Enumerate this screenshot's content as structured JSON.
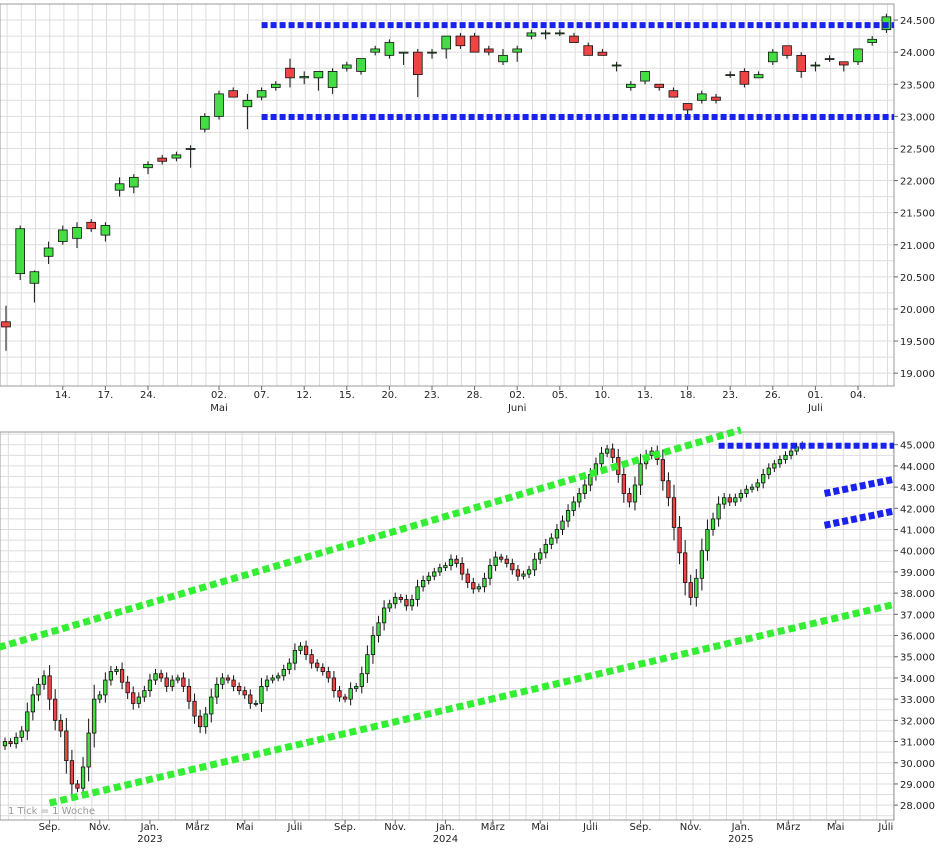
{
  "chart_data": [
    {
      "type": "candlestick",
      "panel": "daily",
      "y_axis": {
        "min": 18800,
        "max": 24750,
        "ticks": [
          "19.000",
          "19.500",
          "20.000",
          "20.500",
          "21.000",
          "21.500",
          "22.000",
          "22.500",
          "23.000",
          "23.500",
          "24.000",
          "24.500"
        ],
        "tick_values": [
          19000,
          19500,
          20000,
          20500,
          21000,
          21500,
          22000,
          22500,
          23000,
          23500,
          24000,
          24500
        ],
        "position": "right"
      },
      "x_axis": {
        "labels": [
          {
            "i": 4,
            "day": "14.",
            "month": ""
          },
          {
            "i": 7,
            "day": "17.",
            "month": ""
          },
          {
            "i": 10,
            "day": "24.",
            "month": ""
          },
          {
            "i": 15,
            "day": "02.",
            "month": "Mai"
          },
          {
            "i": 18,
            "day": "07.",
            "month": ""
          },
          {
            "i": 21,
            "day": "12.",
            "month": ""
          },
          {
            "i": 24,
            "day": "15.",
            "month": ""
          },
          {
            "i": 27,
            "day": "20.",
            "month": ""
          },
          {
            "i": 30,
            "day": "23.",
            "month": ""
          },
          {
            "i": 33,
            "day": "28.",
            "month": ""
          },
          {
            "i": 36,
            "day": "02.",
            "month": "Juni"
          },
          {
            "i": 39,
            "day": "05.",
            "month": ""
          },
          {
            "i": 42,
            "day": "10.",
            "month": ""
          },
          {
            "i": 45,
            "day": "13.",
            "month": ""
          },
          {
            "i": 48,
            "day": "18.",
            "month": ""
          },
          {
            "i": 51,
            "day": "23.",
            "month": ""
          },
          {
            "i": 54,
            "day": "26.",
            "month": ""
          },
          {
            "i": 57,
            "day": "01.",
            "month": "Juli"
          },
          {
            "i": 60,
            "day": "04.",
            "month": ""
          }
        ]
      },
      "candles": [
        [
          19800,
          20050,
          19350,
          19720
        ],
        [
          20550,
          21300,
          20450,
          21250
        ],
        [
          20400,
          20600,
          20100,
          20580
        ],
        [
          20820,
          21050,
          20700,
          20950
        ],
        [
          21050,
          21300,
          21000,
          21230
        ],
        [
          21100,
          21350,
          20950,
          21270
        ],
        [
          21350,
          21400,
          21200,
          21250
        ],
        [
          21150,
          21350,
          21050,
          21300
        ],
        [
          21850,
          22050,
          21750,
          21950
        ],
        [
          21900,
          22100,
          21800,
          22050
        ],
        [
          22200,
          22300,
          22100,
          22250
        ],
        [
          22350,
          22400,
          22250,
          22300
        ],
        [
          22350,
          22450,
          22300,
          22400
        ],
        [
          22500,
          22550,
          22200,
          22500
        ],
        [
          22800,
          23050,
          22750,
          23000
        ],
        [
          23000,
          23400,
          22950,
          23350
        ],
        [
          23400,
          23450,
          23300,
          23300
        ],
        [
          23150,
          23350,
          22800,
          23250
        ],
        [
          23300,
          23450,
          23250,
          23400
        ],
        [
          23450,
          23550,
          23400,
          23500
        ],
        [
          23750,
          23900,
          23450,
          23600
        ],
        [
          23600,
          23700,
          23500,
          23620
        ],
        [
          23600,
          23700,
          23400,
          23700
        ],
        [
          23450,
          23750,
          23350,
          23700
        ],
        [
          23750,
          23850,
          23700,
          23800
        ],
        [
          23700,
          23900,
          23650,
          23900
        ],
        [
          24000,
          24100,
          23950,
          24050
        ],
        [
          23950,
          24200,
          23900,
          24150
        ],
        [
          24000,
          24000,
          23800,
          24000
        ],
        [
          24000,
          24050,
          23300,
          23650
        ],
        [
          24000,
          24050,
          23900,
          24000
        ],
        [
          24050,
          24250,
          23900,
          24250
        ],
        [
          24250,
          24300,
          24050,
          24100
        ],
        [
          24250,
          24300,
          24000,
          24000
        ],
        [
          24050,
          24100,
          23950,
          24000
        ],
        [
          23850,
          24050,
          23800,
          23950
        ],
        [
          24000,
          24100,
          23850,
          24050
        ],
        [
          24250,
          24350,
          24200,
          24300
        ],
        [
          24300,
          24350,
          24200,
          24300
        ],
        [
          24300,
          24350,
          24250,
          24300
        ],
        [
          24250,
          24300,
          24150,
          24150
        ],
        [
          24100,
          24150,
          23950,
          23950
        ],
        [
          24000,
          24050,
          23950,
          23950
        ],
        [
          23800,
          23850,
          23700,
          23800
        ],
        [
          23450,
          23550,
          23400,
          23500
        ],
        [
          23550,
          23700,
          23500,
          23700
        ],
        [
          23500,
          23500,
          23400,
          23450
        ],
        [
          23400,
          23450,
          23300,
          23300
        ],
        [
          23200,
          23200,
          23000,
          23100
        ],
        [
          23250,
          23400,
          23200,
          23350
        ],
        [
          23300,
          23350,
          23200,
          23250
        ],
        [
          23650,
          23700,
          23600,
          23650
        ],
        [
          23700,
          23750,
          23450,
          23500
        ],
        [
          23600,
          23700,
          23600,
          23650
        ],
        [
          23850,
          24050,
          23800,
          24000
        ],
        [
          24100,
          24100,
          23900,
          23950
        ],
        [
          23950,
          24000,
          23600,
          23700
        ],
        [
          23800,
          23850,
          23700,
          23800
        ],
        [
          23900,
          23950,
          23850,
          23900
        ],
        [
          23850,
          23850,
          23700,
          23800
        ],
        [
          23850,
          24050,
          23800,
          24050
        ],
        [
          24150,
          24250,
          24100,
          24200
        ],
        [
          24350,
          24600,
          24300,
          24550
        ]
      ],
      "annotations": [
        {
          "type": "hline",
          "value": 24420,
          "from_i": 18,
          "color": "#1a22ee",
          "style": "dotted"
        },
        {
          "type": "hline",
          "value": 22990,
          "from_i": 18,
          "color": "#1a22ee",
          "style": "dotted"
        }
      ]
    },
    {
      "type": "candlestick",
      "panel": "weekly",
      "y_axis": {
        "min": 27300,
        "max": 45600,
        "ticks": [
          "28.000",
          "29.000",
          "30.000",
          "31.000",
          "32.000",
          "33.000",
          "34.000",
          "35.000",
          "36.000",
          "37.000",
          "38.000",
          "39.000",
          "40.000",
          "41.000",
          "42.000",
          "43.000",
          "44.000",
          "45.000"
        ],
        "tick_values": [
          28000,
          29000,
          30000,
          31000,
          32000,
          33000,
          34000,
          35000,
          36000,
          37000,
          38000,
          39000,
          40000,
          41000,
          42000,
          43000,
          44000,
          45000
        ],
        "position": "right"
      },
      "x_axis": {
        "labels": [
          {
            "i": 8,
            "month": "Sep.",
            "year": ""
          },
          {
            "i": 17,
            "month": "Nov.",
            "year": ""
          },
          {
            "i": 26,
            "month": "Jan.",
            "year": "2023"
          },
          {
            "i": 34.5,
            "month": "März",
            "year": ""
          },
          {
            "i": 43,
            "month": "Mai",
            "year": ""
          },
          {
            "i": 52,
            "month": "Juli",
            "year": ""
          },
          {
            "i": 61,
            "month": "Sep.",
            "year": ""
          },
          {
            "i": 70,
            "month": "Nov.",
            "year": ""
          },
          {
            "i": 79,
            "month": "Jan.",
            "year": "2024"
          },
          {
            "i": 87.5,
            "month": "März",
            "year": ""
          },
          {
            "i": 96,
            "month": "Mai",
            "year": ""
          },
          {
            "i": 105,
            "month": "Juli",
            "year": ""
          },
          {
            "i": 114,
            "month": "Sep.",
            "year": ""
          },
          {
            "i": 123,
            "month": "Nov.",
            "year": ""
          },
          {
            "i": 132,
            "month": "Jan.",
            "year": "2025"
          },
          {
            "i": 140.5,
            "month": "März",
            "year": ""
          },
          {
            "i": 149,
            "month": "Mai",
            "year": ""
          },
          {
            "i": 158,
            "month": "Juli",
            "year": ""
          }
        ]
      },
      "close": [
        31000,
        30900,
        31200,
        31500,
        32400,
        33200,
        33700,
        34100,
        33000,
        32000,
        31500,
        30100,
        29000,
        28800,
        29800,
        31400,
        33000,
        33200,
        33900,
        34300,
        34400,
        33800,
        33300,
        32800,
        33100,
        33400,
        33900,
        34200,
        34000,
        33600,
        33900,
        34000,
        33600,
        32900,
        32200,
        31700,
        32300,
        33100,
        33700,
        34000,
        33900,
        33600,
        33400,
        33200,
        32800,
        32800,
        33600,
        33900,
        34000,
        34100,
        34400,
        34700,
        35300,
        35500,
        35100,
        34700,
        34500,
        34300,
        34000,
        33400,
        33100,
        33000,
        33500,
        33600,
        34200,
        35100,
        36000,
        36600,
        37300,
        37500,
        37800,
        37700,
        37400,
        37700,
        38300,
        38600,
        38800,
        39000,
        39200,
        39300,
        39600,
        39400,
        38900,
        38500,
        38200,
        38300,
        38700,
        39300,
        39700,
        39600,
        39400,
        39100,
        38800,
        38900,
        39100,
        39600,
        39900,
        40300,
        40600,
        41000,
        41400,
        41900,
        42300,
        42700,
        43100,
        43600,
        44100,
        44600,
        44800,
        44400,
        43600,
        42700,
        42300,
        43100,
        44100,
        44500,
        44700,
        44300,
        43300,
        42500,
        41100,
        39900,
        38500,
        37800,
        38700,
        40000,
        41000,
        41500,
        42200,
        42500,
        42300,
        42500,
        42700,
        42900,
        43000,
        43200,
        43600,
        43900,
        44100,
        44300,
        44500,
        44700,
        44900,
        45000
      ],
      "tick_note": "1 Tick = 1 Woche",
      "annotations": [
        {
          "type": "trendline",
          "from": [
            -3,
            35300
          ],
          "to": [
            132,
            45700
          ],
          "color": "#33ee33",
          "style": "dotted"
        },
        {
          "type": "trendline",
          "from": [
            8,
            28100
          ],
          "to": [
            160,
            37500
          ],
          "color": "#33ee33",
          "style": "dotted"
        },
        {
          "type": "hline",
          "value": 44950,
          "from_i": 128,
          "color": "#1a22ee",
          "style": "dotted"
        },
        {
          "type": "trendline",
          "from": [
            147,
            42700
          ],
          "to": [
            160,
            43400
          ],
          "color": "#1a22ee",
          "style": "dotted"
        },
        {
          "type": "trendline",
          "from": [
            147,
            41200
          ],
          "to": [
            160,
            41900
          ],
          "color": "#1a22ee",
          "style": "dotted"
        }
      ]
    }
  ],
  "colors": {
    "up": "#44dd44",
    "down": "#ee4444",
    "grid": "#dddddd",
    "frame": "#999999"
  }
}
